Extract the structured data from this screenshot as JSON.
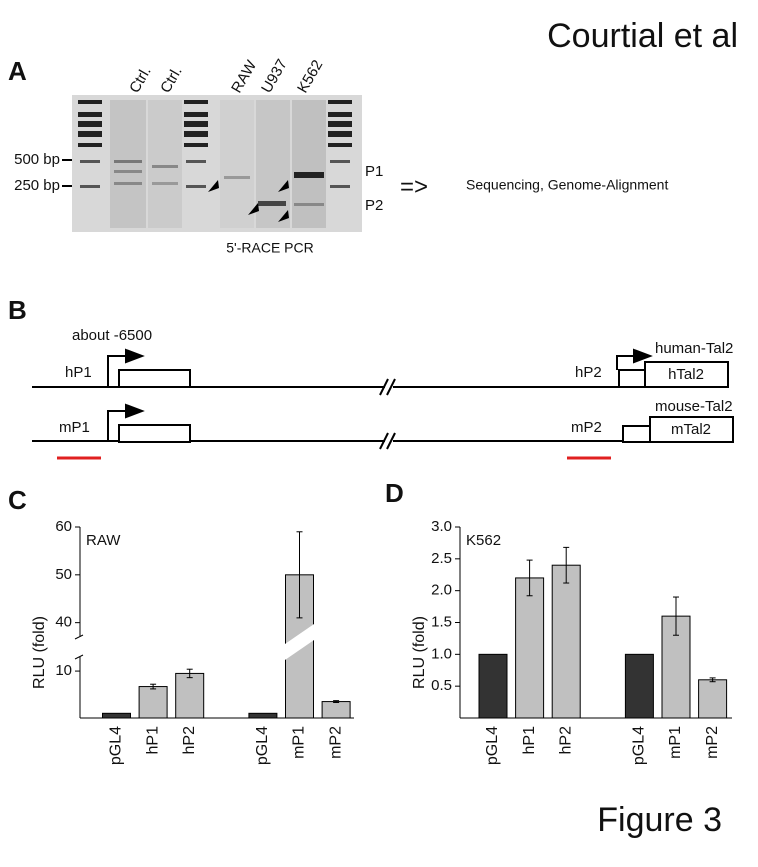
{
  "header": {
    "author": "Courtial et al",
    "figure": "Figure 3"
  },
  "panel_labels": [
    "A",
    "B",
    "C",
    "D"
  ],
  "panel_a": {
    "lanes": [
      "Ctrl.",
      "Ctrl.",
      "RAW",
      "U937",
      "K562"
    ],
    "markers": [
      "500 bp",
      "250 bp"
    ],
    "products": [
      "P1",
      "P2"
    ],
    "arrow": "=>",
    "next_step": "Sequencing, Genome-Alignment",
    "caption": "5'-RACE PCR"
  },
  "panel_b": {
    "position": "about -6500",
    "human": {
      "promoter1": "hP1",
      "promoter2": "hP2",
      "gene": "human-Tal2",
      "box": "hTal2"
    },
    "mouse": {
      "promoter1": "mP1",
      "promoter2": "mP2",
      "gene": "mouse-Tal2",
      "box": "mTal2"
    }
  },
  "chart_data": [
    {
      "type": "bar",
      "title": "RAW",
      "y_label": "RLU (fold)",
      "categories": [
        "pGL4",
        "hP1",
        "hP2",
        null,
        "pGL4",
        "mP1",
        "mP2"
      ],
      "values": [
        1,
        6.7,
        9.5,
        null,
        1,
        50,
        3.5
      ],
      "errors": [
        0,
        0.5,
        0.9,
        null,
        0,
        9,
        0.2
      ],
      "colors": [
        "#333333",
        "#c0c0c0",
        "#c0c0c0",
        null,
        "#333333",
        "#c0c0c0",
        "#c0c0c0"
      ],
      "ylim": [
        0,
        60
      ],
      "axis_break": [
        13,
        37
      ],
      "yticks": [
        10,
        40,
        50,
        60
      ]
    },
    {
      "type": "bar",
      "title": "K562",
      "y_label": "RLU (fold)",
      "categories": [
        "pGL4",
        "hP1",
        "hP2",
        null,
        "pGL4",
        "mP1",
        "mP2"
      ],
      "values": [
        1,
        2.2,
        2.4,
        null,
        1,
        1.6,
        0.6
      ],
      "errors": [
        0,
        0.28,
        0.28,
        null,
        0,
        0.3,
        0.03
      ],
      "colors": [
        "#333333",
        "#c0c0c0",
        "#c0c0c0",
        null,
        "#333333",
        "#c0c0c0",
        "#c0c0c0"
      ],
      "ylim": [
        0,
        3
      ],
      "yticks": [
        0.5,
        {
          "value": 1,
          "label": "1.0"
        },
        1.5,
        {
          "value": 2,
          "label": "2.0"
        },
        2.5,
        {
          "value": 3,
          "label": "3.0"
        }
      ]
    }
  ]
}
